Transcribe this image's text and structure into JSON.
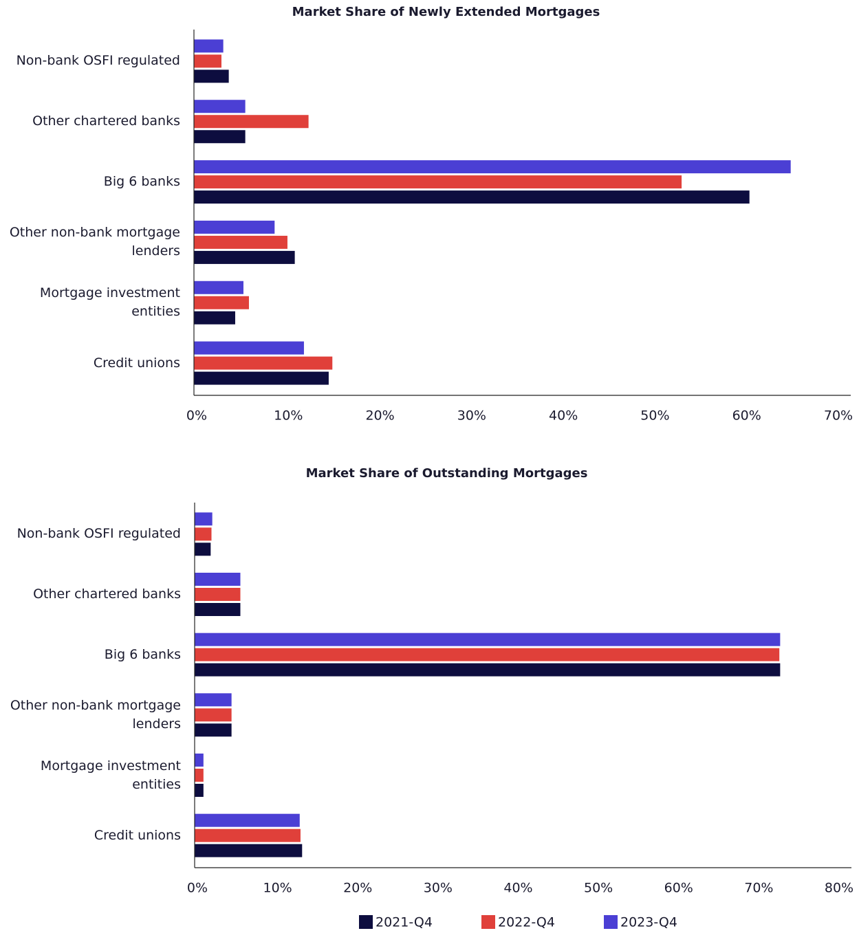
{
  "chart_data": [
    {
      "type": "bar",
      "title": "Market Share of Newly Extended Mortgages",
      "categories": [
        "Non-bank OSFI regulated",
        "Other chartered banks",
        "Big 6 banks",
        "Other non-bank mortgage lenders",
        "Mortgage investment entities",
        "Credit unions"
      ],
      "series": [
        {
          "name": "2021-Q4",
          "color": "#0d0d3f",
          "values": [
            3.8,
            5.6,
            60.6,
            11.0,
            4.5,
            14.7
          ]
        },
        {
          "name": "2022-Q4",
          "color": "#e0403a",
          "values": [
            3.0,
            12.5,
            53.2,
            10.2,
            6.0,
            15.1
          ]
        },
        {
          "name": "2023-Q4",
          "color": "#4b3fd4",
          "values": [
            3.2,
            5.6,
            65.1,
            8.8,
            5.4,
            12.0
          ]
        }
      ],
      "xlim": [
        0,
        70
      ],
      "xticks": [
        {
          "value": 0,
          "label": "0%"
        },
        {
          "value": 10,
          "label": "10%"
        },
        {
          "value": 20,
          "label": "20%"
        },
        {
          "value": 30,
          "label": "30%"
        },
        {
          "value": 40,
          "label": "40%"
        },
        {
          "value": 50,
          "label": "50%"
        },
        {
          "value": 60,
          "label": "60%"
        },
        {
          "value": 70,
          "label": "70%"
        }
      ]
    },
    {
      "type": "bar",
      "title": "Market Share of Outstanding Mortgages",
      "categories": [
        "Non-bank OSFI regulated",
        "Other chartered banks",
        "Big 6 banks",
        "Other non-bank mortgage lenders",
        "Mortgage investment entities",
        "Credit unions"
      ],
      "series": [
        {
          "name": "2021-Q4",
          "color": "#0d0d3f",
          "values": [
            2.0,
            5.7,
            73.0,
            4.6,
            1.1,
            13.4
          ]
        },
        {
          "name": "2022-Q4",
          "color": "#e0403a",
          "values": [
            2.1,
            5.7,
            72.9,
            4.6,
            1.1,
            13.2
          ]
        },
        {
          "name": "2023-Q4",
          "color": "#4b3fd4",
          "values": [
            2.2,
            5.7,
            73.0,
            4.6,
            1.1,
            13.1
          ]
        }
      ],
      "xlim": [
        0,
        80
      ],
      "xticks": [
        {
          "value": 0,
          "label": "0%"
        },
        {
          "value": 10,
          "label": "10%"
        },
        {
          "value": 20,
          "label": "20%"
        },
        {
          "value": 30,
          "label": "30%"
        },
        {
          "value": 40,
          "label": "40%"
        },
        {
          "value": 50,
          "label": "50%"
        },
        {
          "value": 60,
          "label": "60%"
        },
        {
          "value": 70,
          "label": "70%"
        },
        {
          "value": 80,
          "label": "80%"
        }
      ]
    }
  ]
}
